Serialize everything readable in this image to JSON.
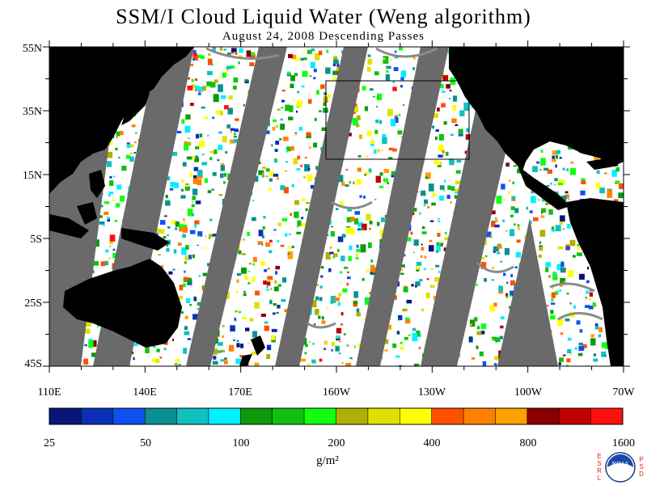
{
  "title": "SSM/I Cloud Liquid Water (Weng algorithm)",
  "subtitle": "August 24, 2008  Descending Passes",
  "map": {
    "lon_range": [
      "110E",
      "70W"
    ],
    "lat_range": [
      "45S",
      "55N"
    ],
    "ocean_color": "#ffffff",
    "land_color": "#000000",
    "gap_color": "#666666",
    "box_region": "northeast Pacific outlined box"
  },
  "lat_labels": [
    "55N",
    "35N",
    "15N",
    "5S",
    "25S",
    "45S"
  ],
  "lon_labels": [
    "110E",
    "140E",
    "170E",
    "160W",
    "130W",
    "100W",
    "70W"
  ],
  "colorbar": {
    "colors": [
      "#08157a",
      "#0a30b8",
      "#1050f0",
      "#0a9090",
      "#10c0c0",
      "#00f0ff",
      "#0a9a0a",
      "#10c010",
      "#10ff10",
      "#b0b000",
      "#e0e000",
      "#ffff00",
      "#ff5000",
      "#ff8000",
      "#ffa000",
      "#8a0000",
      "#c00000",
      "#ff1010"
    ],
    "tick_labels": [
      "25",
      "50",
      "100",
      "200",
      "400",
      "800",
      "1600"
    ],
    "units": "g/m²"
  },
  "logo": {
    "left_letters": [
      "E",
      "S",
      "R",
      "L"
    ],
    "right_letters": [
      "P",
      "S",
      "D"
    ],
    "emblem_text": "NOAA"
  }
}
